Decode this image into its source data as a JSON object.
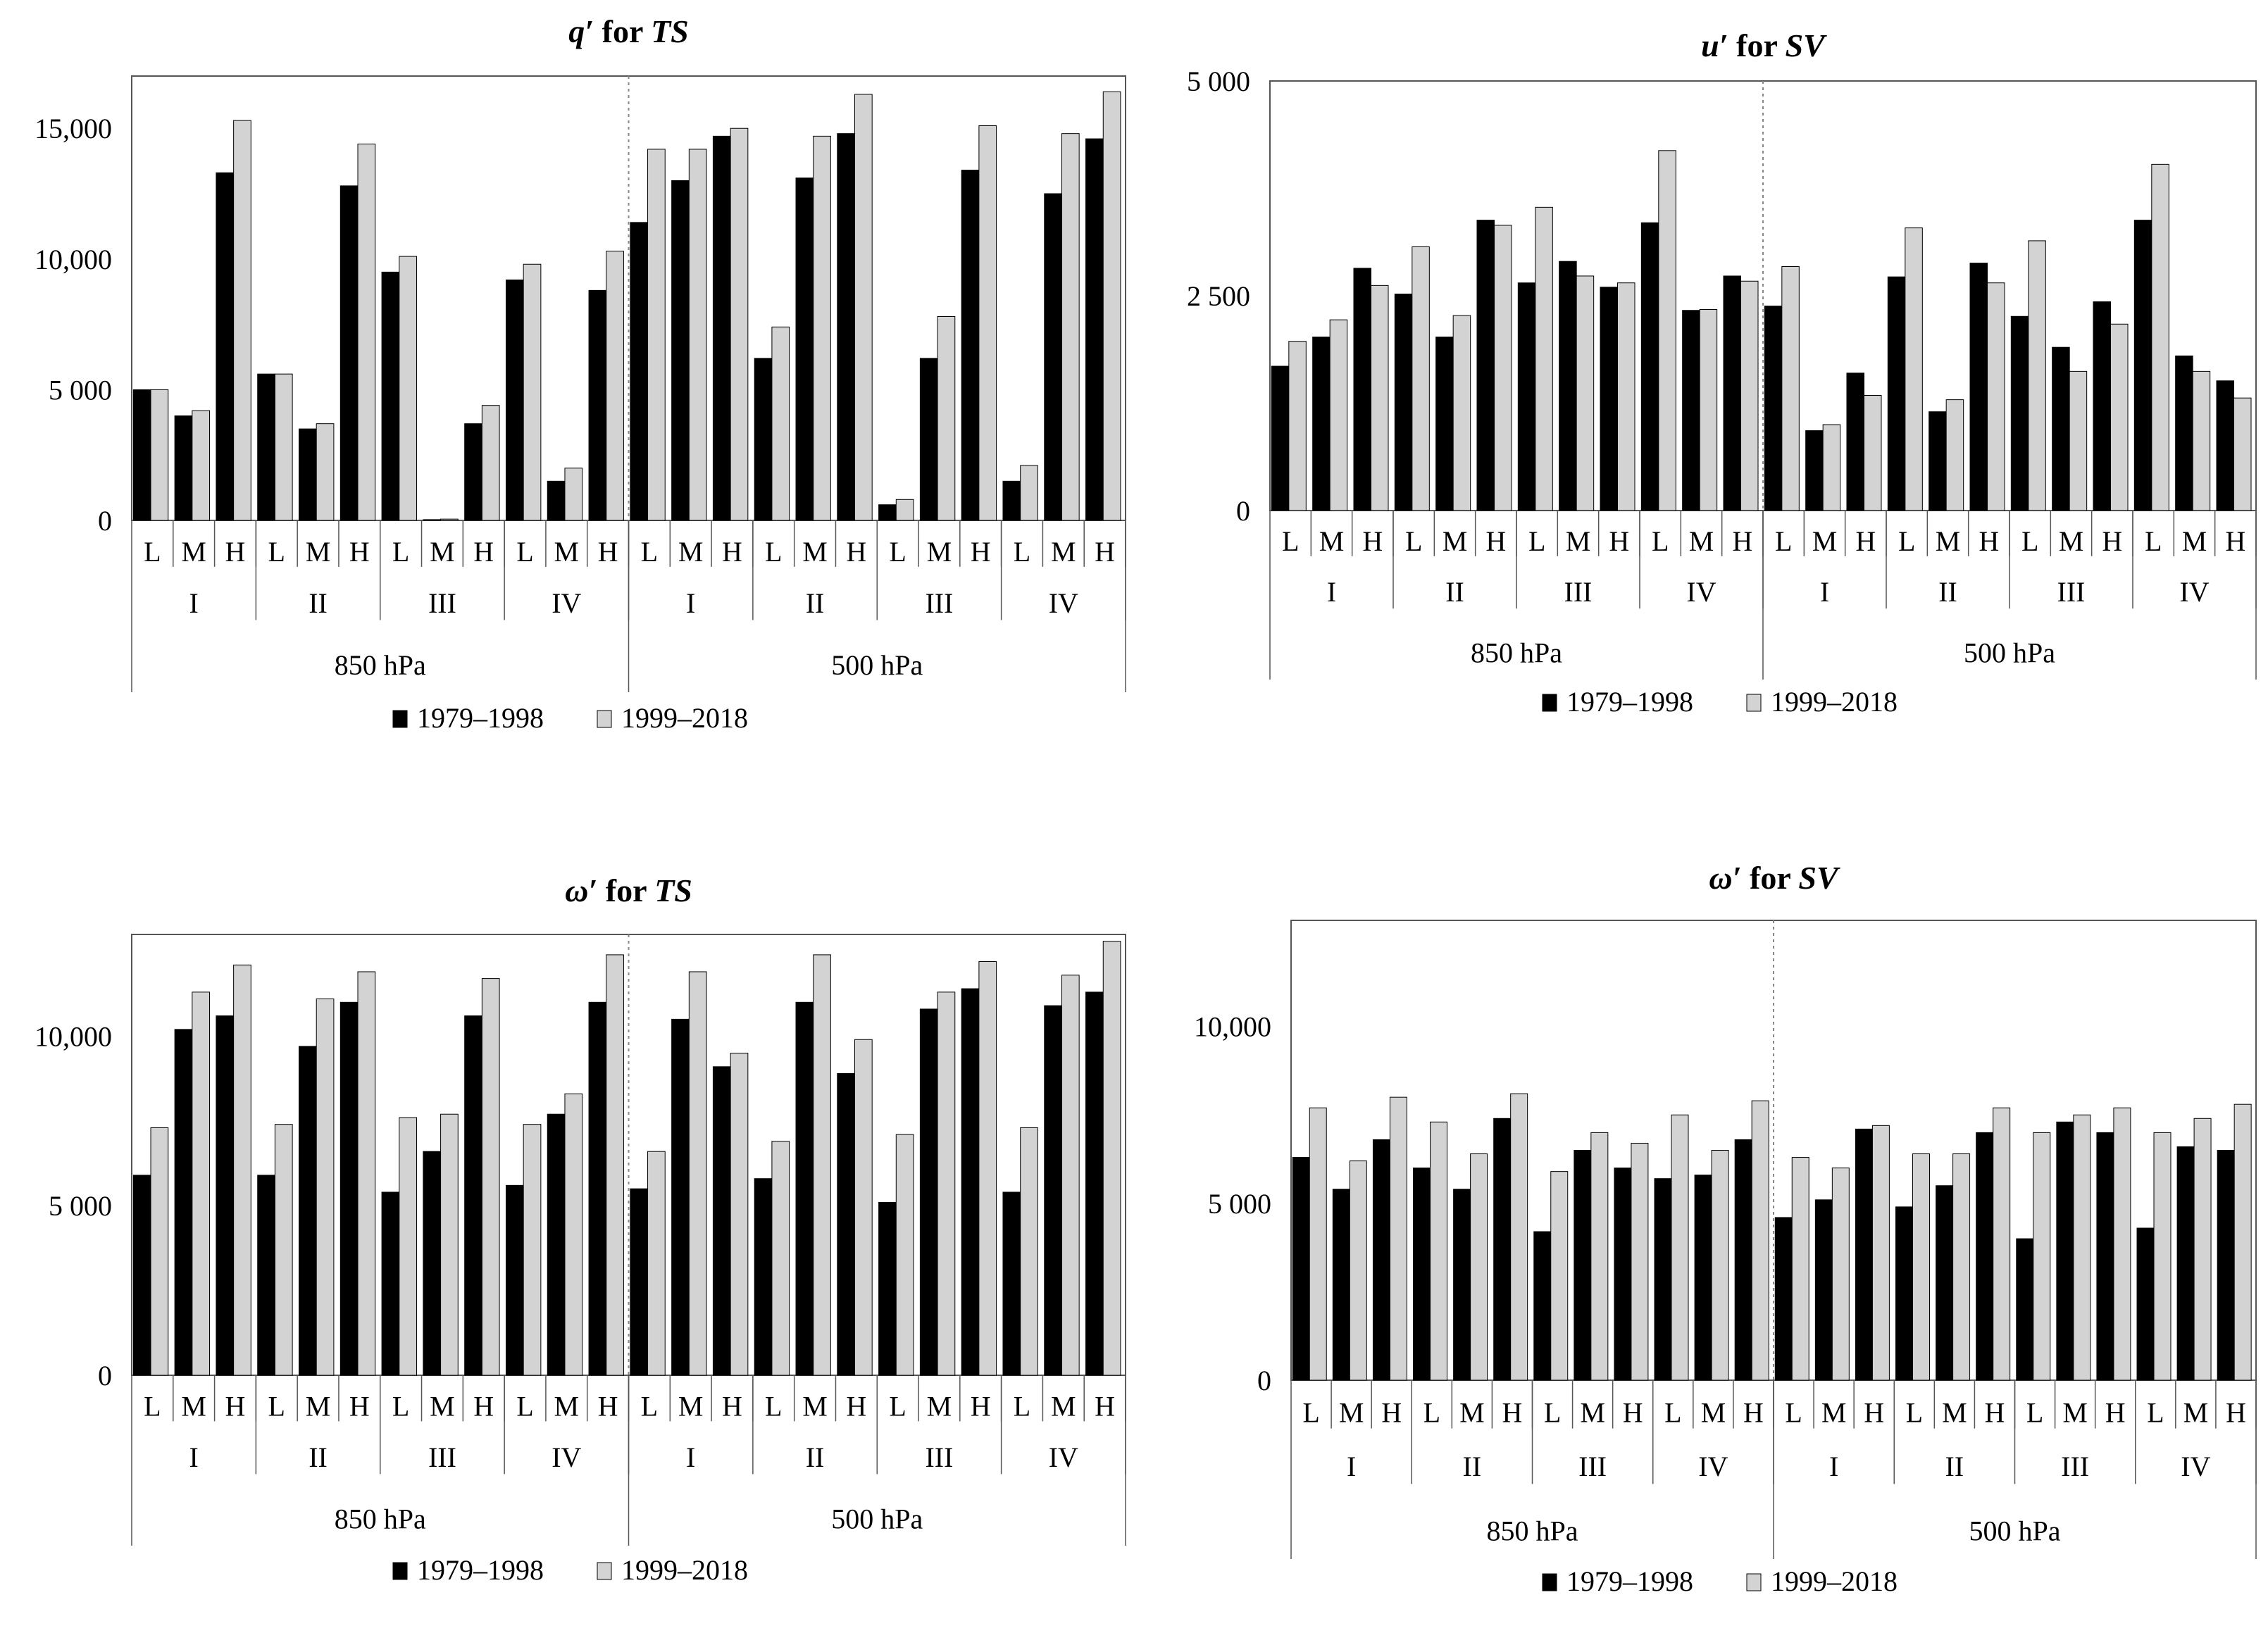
{
  "legend": {
    "period1": "1979–1998",
    "period2": "1999–2018"
  },
  "colors": {
    "period1": "#000000",
    "period2": "#d3d3d3",
    "axis": "#555555",
    "divider": "#888888"
  },
  "chart_data": [
    {
      "id": "q-ts",
      "type": "bar",
      "title_parts": [
        "q′",
        " for ",
        "TS"
      ],
      "title_styles": [
        "bold-italic",
        "bold",
        "bold-italic"
      ],
      "ylim": [
        0,
        17000
      ],
      "yticks": [
        0,
        5000,
        10000,
        15000
      ],
      "ytick_labels": [
        "0",
        "5 000",
        "10,000",
        "15,000"
      ],
      "levels": [
        "850 hPa",
        "500 hPa"
      ],
      "quarters": [
        "I",
        "II",
        "III",
        "IV"
      ],
      "groups": [
        "L",
        "M",
        "H"
      ],
      "series": [
        {
          "name": "1979–1998",
          "values": [
            5000,
            4000,
            13300,
            5600,
            3500,
            12800,
            9500,
            30,
            3700,
            9200,
            1500,
            8800,
            11400,
            13000,
            14700,
            6200,
            13100,
            14800,
            600,
            6200,
            13400,
            1500,
            12500,
            14600
          ]
        },
        {
          "name": "1999–2018",
          "values": [
            5000,
            4200,
            15300,
            5600,
            3700,
            14400,
            10100,
            50,
            4400,
            9800,
            2000,
            10300,
            14200,
            14200,
            15000,
            7400,
            14700,
            16300,
            800,
            7800,
            15100,
            2100,
            14800,
            16400
          ]
        }
      ]
    },
    {
      "id": "u-sv",
      "type": "bar",
      "title_parts": [
        "u′",
        " for ",
        "SV"
      ],
      "title_styles": [
        "bold-italic",
        "bold",
        "bold-italic"
      ],
      "ylim": [
        0,
        5000
      ],
      "yticks": [
        0,
        2500,
        5000
      ],
      "ytick_labels": [
        "0",
        "2 500",
        "5 000"
      ],
      "levels": [
        "850 hPa",
        "500 hPa"
      ],
      "quarters": [
        "I",
        "II",
        "III",
        "IV"
      ],
      "groups": [
        "L",
        "M",
        "H"
      ],
      "series": [
        {
          "name": "1979–1998",
          "values": [
            1680,
            2020,
            2820,
            2520,
            2020,
            3380,
            2650,
            2900,
            2600,
            3350,
            2330,
            2730,
            2380,
            930,
            1600,
            2720,
            1150,
            2880,
            2260,
            1900,
            2430,
            3380,
            1800,
            1510
          ]
        },
        {
          "name": "1999–2018",
          "values": [
            1970,
            2220,
            2620,
            3070,
            2270,
            3320,
            3530,
            2730,
            2650,
            4190,
            2340,
            2670,
            2840,
            1000,
            1340,
            3290,
            1290,
            2650,
            3140,
            1620,
            2170,
            4030,
            1620,
            1310
          ]
        }
      ]
    },
    {
      "id": "w-ts",
      "type": "bar",
      "title_parts": [
        "ω′",
        " for ",
        "TS"
      ],
      "title_styles": [
        "bold-italic",
        "bold",
        "bold-italic"
      ],
      "ylim": [
        0,
        13000
      ],
      "yticks": [
        0,
        5000,
        10000
      ],
      "ytick_labels": [
        "0",
        "5 000",
        "10,000"
      ],
      "levels": [
        "850 hPa",
        "500 hPa"
      ],
      "quarters": [
        "I",
        "II",
        "III",
        "IV"
      ],
      "groups": [
        "L",
        "M",
        "H"
      ],
      "series": [
        {
          "name": "1979–1998",
          "values": [
            5900,
            10200,
            10600,
            5900,
            9700,
            11000,
            5400,
            6600,
            10600,
            5600,
            7700,
            11000,
            5500,
            10500,
            9100,
            5800,
            11000,
            8900,
            5100,
            10800,
            11400,
            5400,
            10900,
            11300
          ]
        },
        {
          "name": "1999–2018",
          "values": [
            7300,
            11300,
            12100,
            7400,
            11100,
            11900,
            7600,
            7700,
            11700,
            7400,
            8300,
            12400,
            6600,
            11900,
            9500,
            6900,
            12400,
            9900,
            7100,
            11300,
            12200,
            7300,
            11800,
            12800
          ]
        }
      ]
    },
    {
      "id": "w-sv",
      "type": "bar",
      "title_parts": [
        "ω′",
        " for ",
        "SV"
      ],
      "title_styles": [
        "bold-italic",
        "bold",
        "bold-italic"
      ],
      "ylim": [
        0,
        13000
      ],
      "yticks": [
        0,
        5000,
        10000
      ],
      "ytick_labels": [
        "0",
        "5 000",
        "10,000"
      ],
      "levels": [
        "850 hPa",
        "500 hPa"
      ],
      "quarters": [
        "I",
        "II",
        "III",
        "IV"
      ],
      "groups": [
        "L",
        "M",
        "H"
      ],
      "series": [
        {
          "name": "1979–1998",
          "values": [
            6300,
            5400,
            6800,
            6000,
            5400,
            7400,
            4200,
            6500,
            6000,
            5700,
            5800,
            6800,
            4600,
            5100,
            7100,
            4900,
            5500,
            7000,
            4000,
            7300,
            7000,
            4300,
            6600,
            6500
          ]
        },
        {
          "name": "1999–2018",
          "values": [
            7700,
            6200,
            8000,
            7300,
            6400,
            8100,
            5900,
            7000,
            6700,
            7500,
            6500,
            7900,
            6300,
            6000,
            7200,
            6400,
            6400,
            7700,
            7000,
            7500,
            7700,
            7000,
            7400,
            7800
          ]
        }
      ]
    }
  ]
}
